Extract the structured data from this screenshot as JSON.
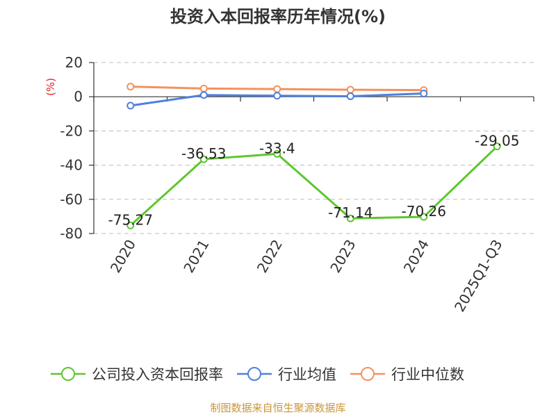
{
  "chart_data": {
    "type": "line",
    "title": "投资入本回报率历年情况(%)",
    "unit_label": "(%)",
    "categories": [
      "2020",
      "2021",
      "2022",
      "2023",
      "2024",
      "2025Q1-Q3"
    ],
    "ylim": [
      -80,
      20
    ],
    "yticks": [
      20,
      0,
      -20,
      -40,
      -60,
      -80
    ],
    "ytick_labels": [
      "20",
      "0",
      "-20",
      "-40",
      "-60",
      "-80"
    ],
    "grid": true,
    "legend_position": "bottom",
    "series": [
      {
        "name": "公司投入资本回报率",
        "color": "#5cc72c",
        "values": [
          -75.27,
          -36.53,
          -33.4,
          -71.14,
          -70.26,
          -29.05
        ],
        "labels": [
          "-75.27",
          "-36.53",
          "-33.4",
          "-71.14",
          "-70.26",
          "-29.05"
        ],
        "show_labels": true
      },
      {
        "name": "行业均值",
        "color": "#4f7fdc",
        "values": [
          -5.2,
          1.0,
          0.6,
          0.3,
          1.9,
          null
        ],
        "show_labels": false
      },
      {
        "name": "行业中位数",
        "color": "#f5915a",
        "values": [
          5.9,
          4.8,
          4.5,
          4.1,
          3.9,
          null
        ],
        "show_labels": false
      }
    ],
    "source": "制图数据来自恒生聚源数据库"
  }
}
